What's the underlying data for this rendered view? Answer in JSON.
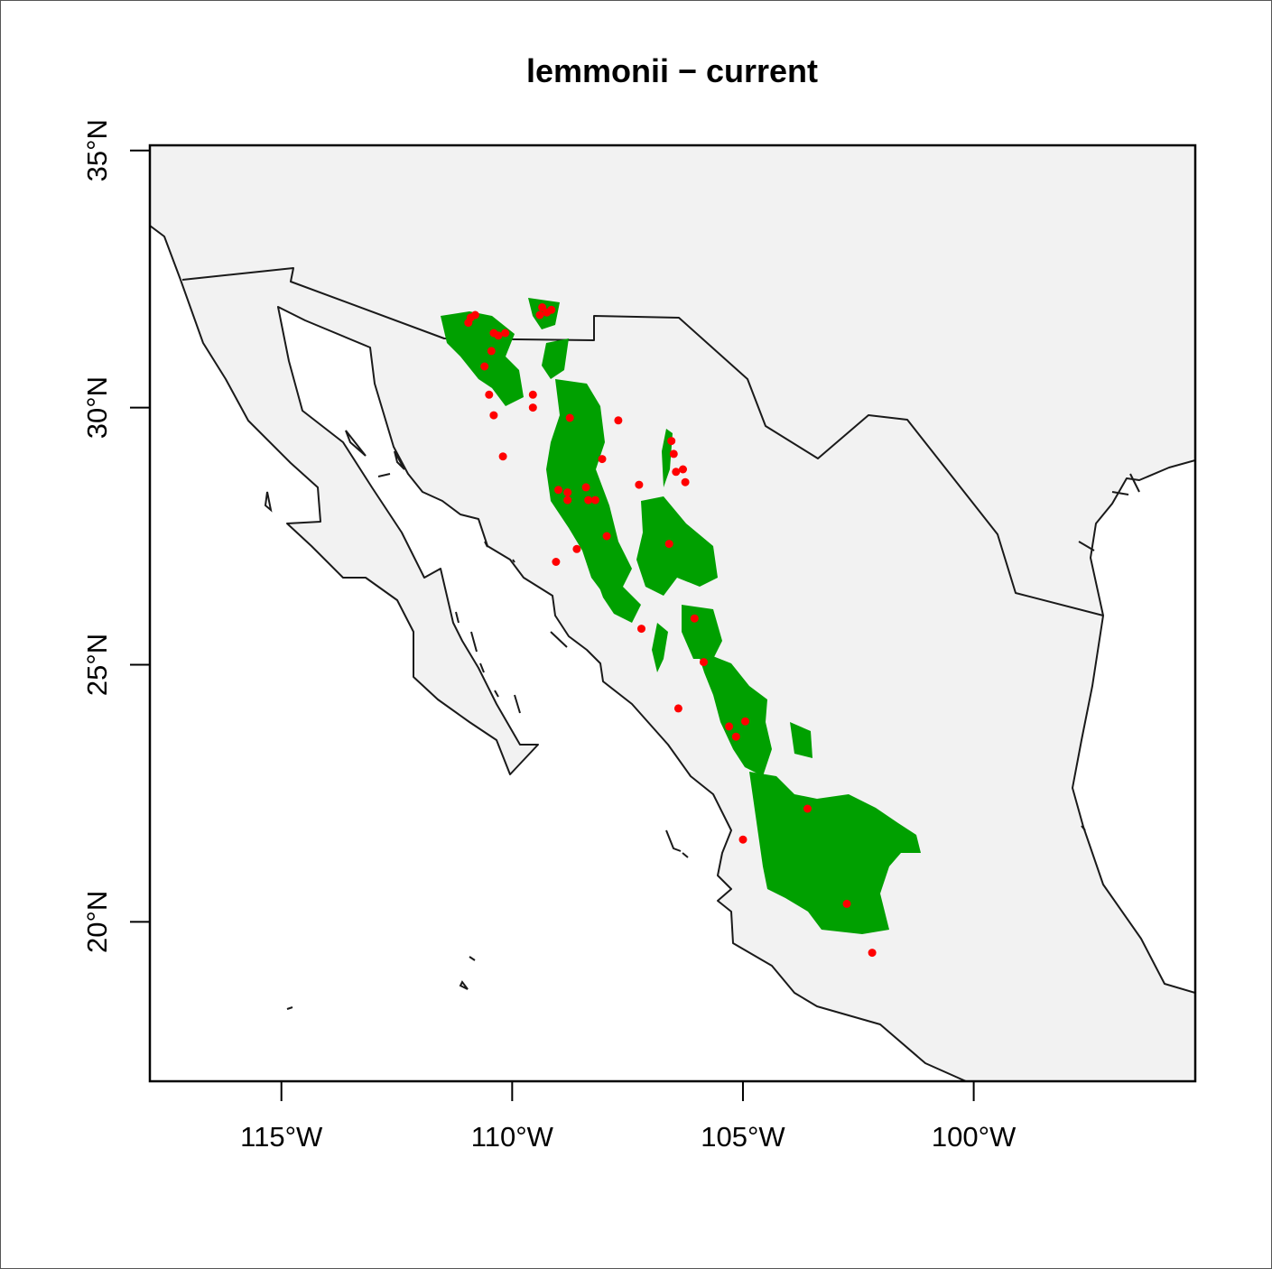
{
  "title": "lemmonii − current",
  "map": {
    "x_range_lon": [
      -117.85,
      -95.2
    ],
    "y_range_lat": [
      16.9,
      35.1
    ],
    "land_color": "#f2f2f2",
    "water_color": "#ffffff",
    "border_color": "#1a1a1a",
    "suitable_color": "#00a000",
    "point_color": "#ff0000",
    "x_ticks": [
      {
        "value": -115,
        "label": "115°W"
      },
      {
        "value": -110,
        "label": "110°W"
      },
      {
        "value": -105,
        "label": "105°W"
      },
      {
        "value": -100,
        "label": "100°W"
      }
    ],
    "y_ticks": [
      {
        "value": 20,
        "label": "20°N"
      },
      {
        "value": 25,
        "label": "25°N"
      },
      {
        "value": 30,
        "label": "30°N"
      },
      {
        "value": 35,
        "label": "35°N"
      }
    ],
    "occurrences": [
      [
        -110.9,
        31.75
      ],
      [
        -110.8,
        31.8
      ],
      [
        -110.95,
        31.65
      ],
      [
        -110.4,
        31.45
      ],
      [
        -110.3,
        31.4
      ],
      [
        -110.15,
        31.45
      ],
      [
        -110.45,
        31.1
      ],
      [
        -110.6,
        30.8
      ],
      [
        -110.5,
        30.25
      ],
      [
        -110.4,
        29.85
      ],
      [
        -110.2,
        29.05
      ],
      [
        -109.35,
        31.95
      ],
      [
        -109.25,
        31.85
      ],
      [
        -109.4,
        31.8
      ],
      [
        -109.15,
        31.9
      ],
      [
        -109.55,
        30.25
      ],
      [
        -109.55,
        30.0
      ],
      [
        -108.75,
        29.8
      ],
      [
        -108.05,
        29.0
      ],
      [
        -107.7,
        29.75
      ],
      [
        -109.0,
        28.4
      ],
      [
        -108.8,
        28.35
      ],
      [
        -108.8,
        28.2
      ],
      [
        -108.4,
        28.45
      ],
      [
        -108.35,
        28.2
      ],
      [
        -108.2,
        28.2
      ],
      [
        -108.6,
        27.25
      ],
      [
        -107.95,
        27.5
      ],
      [
        -109.05,
        27.0
      ],
      [
        -107.25,
        28.5
      ],
      [
        -106.55,
        29.35
      ],
      [
        -106.5,
        29.1
      ],
      [
        -106.45,
        28.75
      ],
      [
        -106.3,
        28.8
      ],
      [
        -106.25,
        28.55
      ],
      [
        -106.6,
        27.35
      ],
      [
        -107.2,
        25.7
      ],
      [
        -106.05,
        25.9
      ],
      [
        -105.85,
        25.05
      ],
      [
        -106.4,
        24.15
      ],
      [
        -105.3,
        23.8
      ],
      [
        -104.95,
        23.9
      ],
      [
        -105.15,
        23.6
      ],
      [
        -105.0,
        21.6
      ],
      [
        -103.6,
        22.2
      ],
      [
        -102.75,
        20.35
      ],
      [
        -102.2,
        19.4
      ]
    ]
  }
}
